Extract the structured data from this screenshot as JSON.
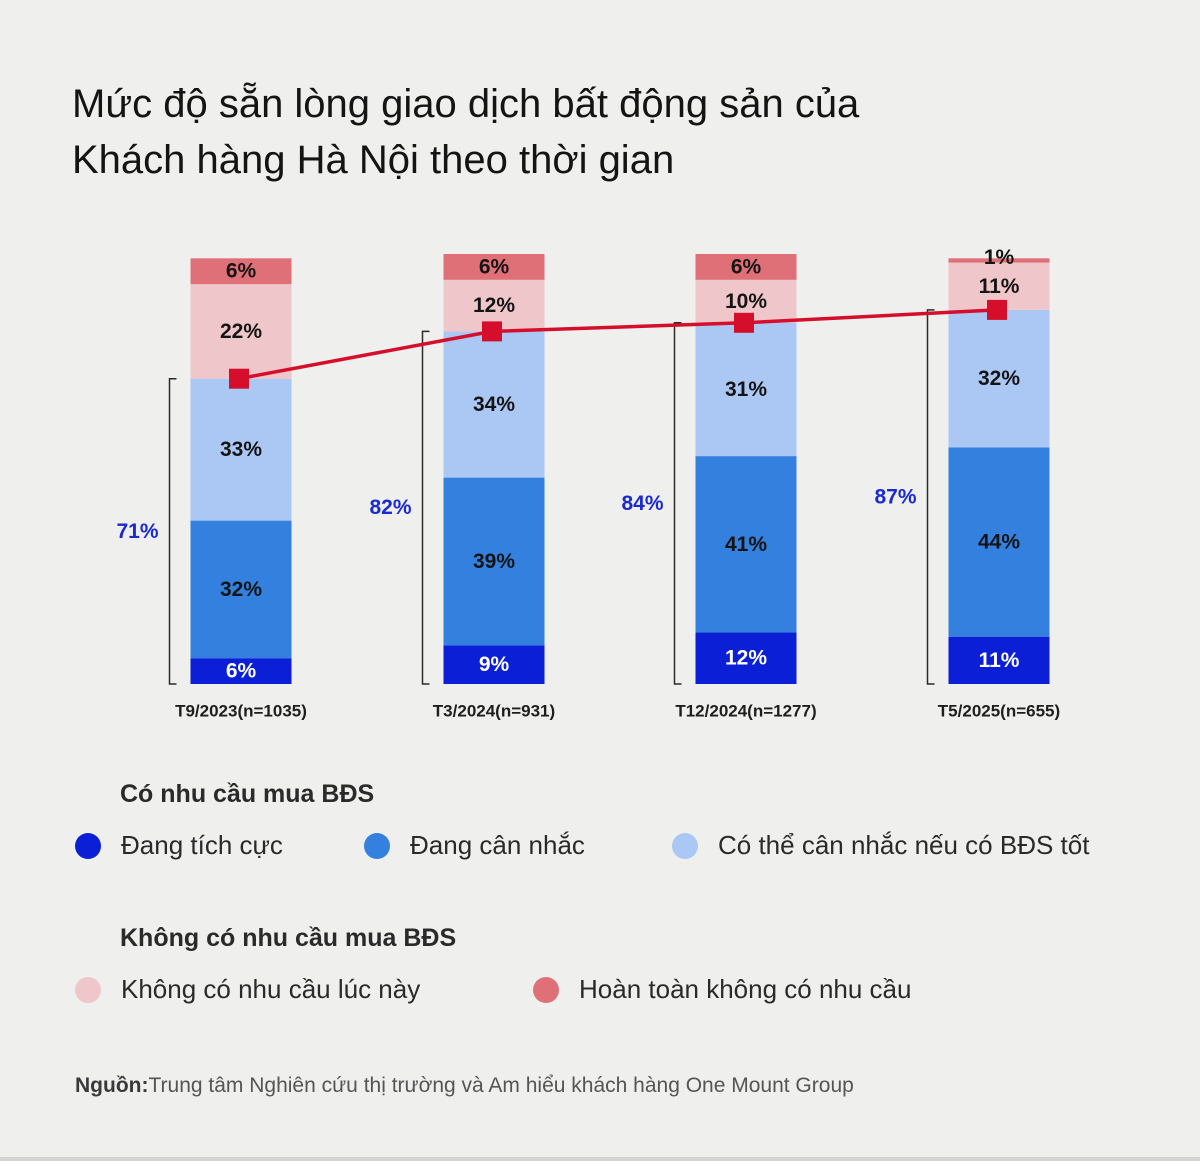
{
  "title_line1": "Mức độ sẵn lòng giao dịch bất động sản của",
  "title_line2": "Khách hàng Hà Nội theo thời gian",
  "chart_data": {
    "type": "bar",
    "stacked": true,
    "categories": [
      "T9/2023(n=1035)",
      "T3/2024(n=931)",
      "T12/2024(n=1277)",
      "T5/2025(n=655)"
    ],
    "series": [
      {
        "name": "Đang tích cực",
        "color": "#0b1fd6",
        "values": [
          6,
          9,
          12,
          11
        ]
      },
      {
        "name": "Đang cân nhắc",
        "color": "#3380de",
        "values": [
          32,
          39,
          41,
          44
        ]
      },
      {
        "name": "Có thể cân nhắc nếu có BĐS tốt",
        "color": "#abc8f5",
        "values": [
          33,
          34,
          31,
          32
        ]
      },
      {
        "name": "Không có nhu cầu lúc này",
        "color": "#efc6ca",
        "values": [
          22,
          12,
          10,
          11
        ]
      },
      {
        "name": "Hoàn toàn không có nhu cầu",
        "color": "#e07078",
        "values": [
          6,
          6,
          6,
          1
        ]
      }
    ],
    "demand_totals": [
      71,
      82,
      84,
      87
    ],
    "demand_total_color": "#1a2ad0",
    "line_color": "#d50f2b",
    "ylim": [
      0,
      100
    ]
  },
  "legend": {
    "group1_title": "Có nhu cầu mua BĐS",
    "group2_title": "Không có nhu cầu mua BĐS",
    "items": [
      {
        "label": "Đang tích cực",
        "color": "#0b1fd6"
      },
      {
        "label": "Đang cân nhắc",
        "color": "#3380de"
      },
      {
        "label": "Có thể cân nhắc nếu có BĐS tốt",
        "color": "#abc8f5"
      },
      {
        "label": "Không có nhu cầu lúc này",
        "color": "#efc6ca"
      },
      {
        "label": "Hoàn toàn không có nhu cầu",
        "color": "#e07078"
      }
    ]
  },
  "source": {
    "label": "Nguồn:",
    "text": "Trung tâm Nghiên cứu thị trường và Am hiểu khách hàng One Mount Group"
  }
}
